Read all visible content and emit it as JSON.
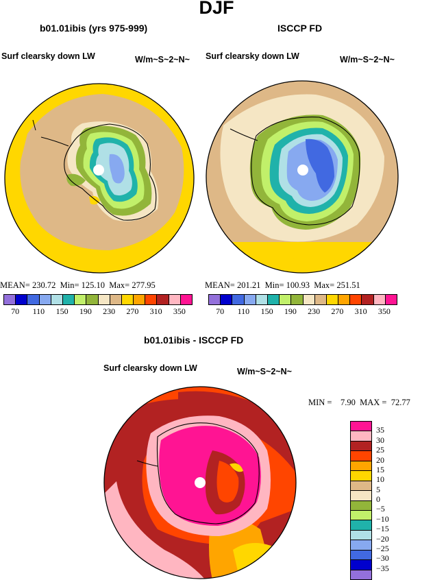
{
  "main_title": "DJF",
  "panels": [
    {
      "title": "b01.01ibis (yrs 975-999)",
      "subtitle": "Surf clearsky down LW",
      "units": "W/m~S~2~N~",
      "stats": {
        "mean_label": "MEAN=",
        "mean": "230.72",
        "min_label": "Min=",
        "min": "125.10",
        "max_label": "Max=",
        "max": "277.95"
      }
    },
    {
      "title": "ISCCP FD",
      "subtitle": "Surf clearsky down LW",
      "units": "W/m~S~2~N~",
      "stats": {
        "mean_label": "MEAN=",
        "mean": "201.21",
        "min_label": "Min=",
        "min": "100.93",
        "max_label": "Max=",
        "max": "251.51"
      }
    }
  ],
  "colorbar_top": {
    "colors": [
      "#9370db",
      "#0000cd",
      "#4169e1",
      "#87a9f0",
      "#b0e0e6",
      "#20b2aa",
      "#c1f06a",
      "#92b53a",
      "#f5e6c4",
      "#deb887",
      "#ffd700",
      "#ffa500",
      "#ff4500",
      "#b22222",
      "#ffb6c1",
      "#ff1493"
    ],
    "labels": [
      "70",
      "110",
      "150",
      "190",
      "230",
      "270",
      "310",
      "350"
    ]
  },
  "diff_panel": {
    "title": "b01.01ibis - ISCCP FD",
    "subtitle": "Surf clearsky down LW",
    "units": "W/m~S~2~N~",
    "min_label": "MIN =",
    "min": "7.90",
    "max_label": "MAX =",
    "max": "72.77"
  },
  "colorbar_diff": {
    "colors": [
      "#ff1493",
      "#ffb6c1",
      "#b22222",
      "#ff4500",
      "#ffa500",
      "#ffd700",
      "#deb887",
      "#f5e6c4",
      "#92b53a",
      "#c1f06a",
      "#20b2aa",
      "#b0e0e6",
      "#87a9f0",
      "#4169e1",
      "#0000cd",
      "#9370db"
    ],
    "labels": [
      "35",
      "30",
      "25",
      "20",
      "15",
      "10",
      "5",
      "0",
      "−5",
      "−10",
      "−15",
      "−20",
      "−25",
      "−30",
      "−35"
    ]
  }
}
